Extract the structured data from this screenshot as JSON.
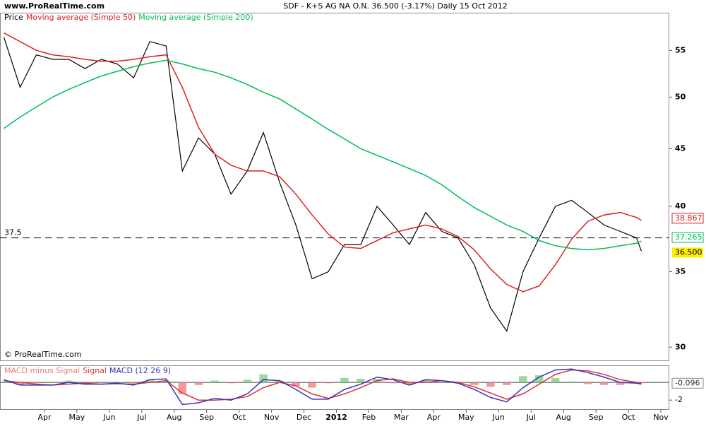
{
  "header": {
    "site": "www.ProRealTime.com",
    "title": "SDF - K+S AG NA O.N.    36.500 (-3.17%)    Daily  15 Oct 2012"
  },
  "chart_data": [
    {
      "type": "line",
      "log_scale": true,
      "watermark": "© ProRealTime.com",
      "ylim": [
        29.2,
        59.4
      ],
      "yticks": [
        30,
        35,
        40,
        45,
        50,
        55
      ],
      "xlim": [
        -0.37,
        20.26
      ],
      "reference_line": 37.5,
      "x": [
        -0.25,
        0.25,
        0.75,
        1.25,
        1.75,
        2.25,
        2.75,
        3.25,
        3.75,
        4.25,
        4.75,
        5.25,
        5.75,
        6.25,
        6.75,
        7.25,
        7.75,
        8.25,
        8.75,
        9.25,
        9.75,
        10.25,
        10.75,
        11.25,
        11.75,
        12.25,
        12.75,
        13.25,
        13.75,
        14.25,
        14.75,
        15.25,
        15.75,
        16.25,
        16.75,
        17.25,
        17.75,
        18.25,
        18.75,
        19.25,
        19.4
      ],
      "series": [
        {
          "name": "Price",
          "color": "#000000",
          "tag_color": "#ffee00",
          "values": [
            56.5,
            51,
            54.5,
            54,
            54,
            53,
            54,
            53.5,
            52,
            56,
            55.5,
            43,
            46,
            44.5,
            41,
            43,
            46.5,
            42,
            38.5,
            34.5,
            35,
            37,
            37,
            40,
            38.5,
            37,
            39.5,
            38,
            37.5,
            35.5,
            32.5,
            31,
            35,
            37.5,
            40,
            40.5,
            39.5,
            38.5,
            38,
            37.5,
            36.5
          ],
          "value_labels": [
            null,
            null,
            null,
            null,
            null,
            null,
            null,
            null,
            null,
            null,
            null,
            null,
            null,
            null,
            null,
            null,
            null,
            null,
            null,
            null,
            null,
            null,
            null,
            null,
            null,
            null,
            null,
            null,
            null,
            null,
            null,
            null,
            null,
            null,
            null,
            null,
            null,
            null,
            null,
            null,
            "36.500"
          ]
        },
        {
          "name": "Moving average (Simple 50)",
          "color": "#dd2020",
          "values": [
            57,
            56,
            55,
            54.5,
            54.3,
            54,
            53.8,
            53.8,
            54,
            54.3,
            54.5,
            51,
            47,
            44.5,
            43.5,
            43,
            43,
            42.5,
            41,
            39.3,
            37.8,
            36.8,
            36.7,
            37.3,
            37.9,
            38.2,
            38.5,
            38.2,
            37.6,
            36.6,
            35.2,
            34.1,
            33.6,
            34,
            35.5,
            37.4,
            38.8,
            39.3,
            39.5,
            39.1,
            38.867
          ]
        },
        {
          "name": "Moving average (Simple 200)",
          "color": "#00bb55",
          "values": [
            46.9,
            48,
            49,
            50,
            50.8,
            51.5,
            52.2,
            52.7,
            53.2,
            53.6,
            53.9,
            53.5,
            53,
            52.6,
            52,
            51.3,
            50.5,
            49.8,
            48.8,
            47.8,
            46.8,
            45.9,
            45,
            44.4,
            43.8,
            43.2,
            42.6,
            41.8,
            40.8,
            39.9,
            39.2,
            38.5,
            38,
            37.3,
            36.9,
            36.7,
            36.6,
            36.7,
            36.9,
            37.1,
            37.265
          ]
        }
      ]
    },
    {
      "type": "line",
      "ylim": [
        -3.1,
        1.84
      ],
      "yticks": [
        -2
      ],
      "xlim": [
        -0.37,
        20.26
      ],
      "xticks": [
        {
          "value": 1,
          "label": "Apr"
        },
        {
          "value": 2,
          "label": "May"
        },
        {
          "value": 3,
          "label": "Jun"
        },
        {
          "value": 4,
          "label": "Jul"
        },
        {
          "value": 5,
          "label": "Aug"
        },
        {
          "value": 6,
          "label": "Sep"
        },
        {
          "value": 7,
          "label": "Oct"
        },
        {
          "value": 8,
          "label": "Nov"
        },
        {
          "value": 9,
          "label": "Dec"
        },
        {
          "value": 10,
          "label": "2012"
        },
        {
          "value": 11,
          "label": "Feb"
        },
        {
          "value": 12,
          "label": "Mar"
        },
        {
          "value": 13,
          "label": "Apr"
        },
        {
          "value": 14,
          "label": "May"
        },
        {
          "value": 15,
          "label": "Jun"
        },
        {
          "value": 16,
          "label": "Jul"
        },
        {
          "value": 17,
          "label": "Aug"
        },
        {
          "value": 18,
          "label": "Sep"
        },
        {
          "value": 19,
          "label": "Oct"
        },
        {
          "value": 20,
          "label": "Nov"
        }
      ],
      "x": [
        -0.25,
        0.25,
        0.75,
        1.25,
        1.75,
        2.25,
        2.75,
        3.25,
        3.75,
        4.25,
        4.75,
        5.25,
        5.75,
        6.25,
        6.75,
        7.25,
        7.75,
        8.25,
        8.75,
        9.25,
        9.75,
        10.25,
        10.75,
        11.25,
        11.75,
        12.25,
        12.75,
        13.25,
        13.75,
        14.25,
        14.75,
        15.25,
        15.75,
        16.25,
        16.75,
        17.25,
        17.75,
        18.25,
        18.75,
        19.25,
        19.4
      ],
      "series": [
        {
          "name": "MACD minus Signal",
          "type": "bar",
          "color": "#ee7777",
          "color_positive": "#77cc77",
          "values": [
            0.1,
            -0.3,
            -0.1,
            0,
            0.2,
            -0.1,
            0,
            0.05,
            -0.1,
            0.3,
            0.2,
            -1.3,
            -0.3,
            0.2,
            -0.1,
            0.3,
            0.9,
            0.2,
            -0.4,
            -0.6,
            -0.1,
            0.5,
            0.4,
            0.4,
            -0.1,
            -0.3,
            0.3,
            0,
            -0.1,
            -0.3,
            -0.5,
            -0.3,
            0.7,
            0.8,
            0.5,
            0.1,
            -0.2,
            -0.3,
            -0.3,
            -0.1,
            -0.096
          ]
        },
        {
          "name": "Signal",
          "type": "line",
          "color": "#dd3333",
          "values": [
            0.2,
            0,
            -0.2,
            -0.3,
            -0.2,
            -0.1,
            -0.2,
            -0.15,
            -0.2,
            0,
            0.2,
            -1.2,
            -2,
            -2,
            -1.9,
            -1.6,
            -0.6,
            0,
            -0.4,
            -1.3,
            -1.8,
            -1.3,
            -0.6,
            0.2,
            0.4,
            0,
            0,
            0.2,
            0,
            -0.5,
            -1.2,
            -1.9,
            -1.3,
            -0.2,
            0.9,
            1.4,
            1.3,
            0.9,
            0.3,
            0,
            -0.1
          ]
        },
        {
          "name": "MACD (12 26 9)",
          "type": "line",
          "color": "#3333bb",
          "values": [
            0.3,
            -0.3,
            -0.3,
            -0.3,
            0,
            -0.2,
            -0.2,
            -0.1,
            -0.3,
            0.3,
            0.4,
            -2.5,
            -2.3,
            -1.8,
            -2,
            -1.3,
            0.3,
            0.2,
            -0.8,
            -1.9,
            -1.9,
            -0.8,
            -0.2,
            0.6,
            0.3,
            -0.3,
            0.3,
            0.2,
            -0.1,
            -0.8,
            -1.7,
            -2.2,
            -0.6,
            0.6,
            1.4,
            1.5,
            1.1,
            0.6,
            0,
            -0.1,
            -0.2
          ]
        }
      ]
    }
  ]
}
